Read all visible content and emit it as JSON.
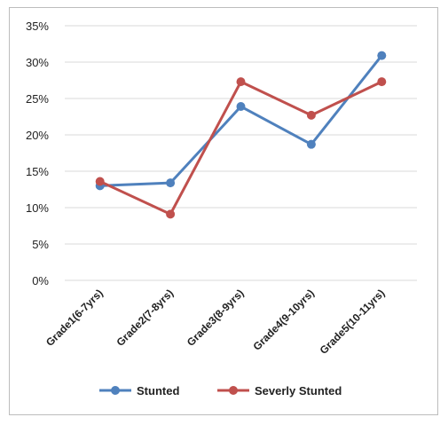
{
  "chart_data": {
    "type": "line",
    "categories": [
      "Grade1(6-7yrs)",
      "Grade2(7-8yrs)",
      "Grade3(8-9yrs)",
      "Grade4(9-10yrs)",
      "Grade5(10-11yrs)"
    ],
    "series": [
      {
        "name": "Stunted",
        "values": [
          13.0,
          13.4,
          23.9,
          18.7,
          30.9
        ],
        "color": "#4f81bd"
      },
      {
        "name": "Severly Stunted",
        "values": [
          13.6,
          9.1,
          27.3,
          22.7,
          27.3
        ],
        "color": "#c0504d"
      }
    ],
    "ylim": [
      0,
      35
    ],
    "yticks": [
      "0%",
      "5%",
      "10%",
      "15%",
      "20%",
      "25%",
      "30%",
      "35%"
    ],
    "ytick_values": [
      0,
      5,
      10,
      15,
      20,
      25,
      30,
      35
    ],
    "grid": true,
    "legend": "bottom"
  }
}
